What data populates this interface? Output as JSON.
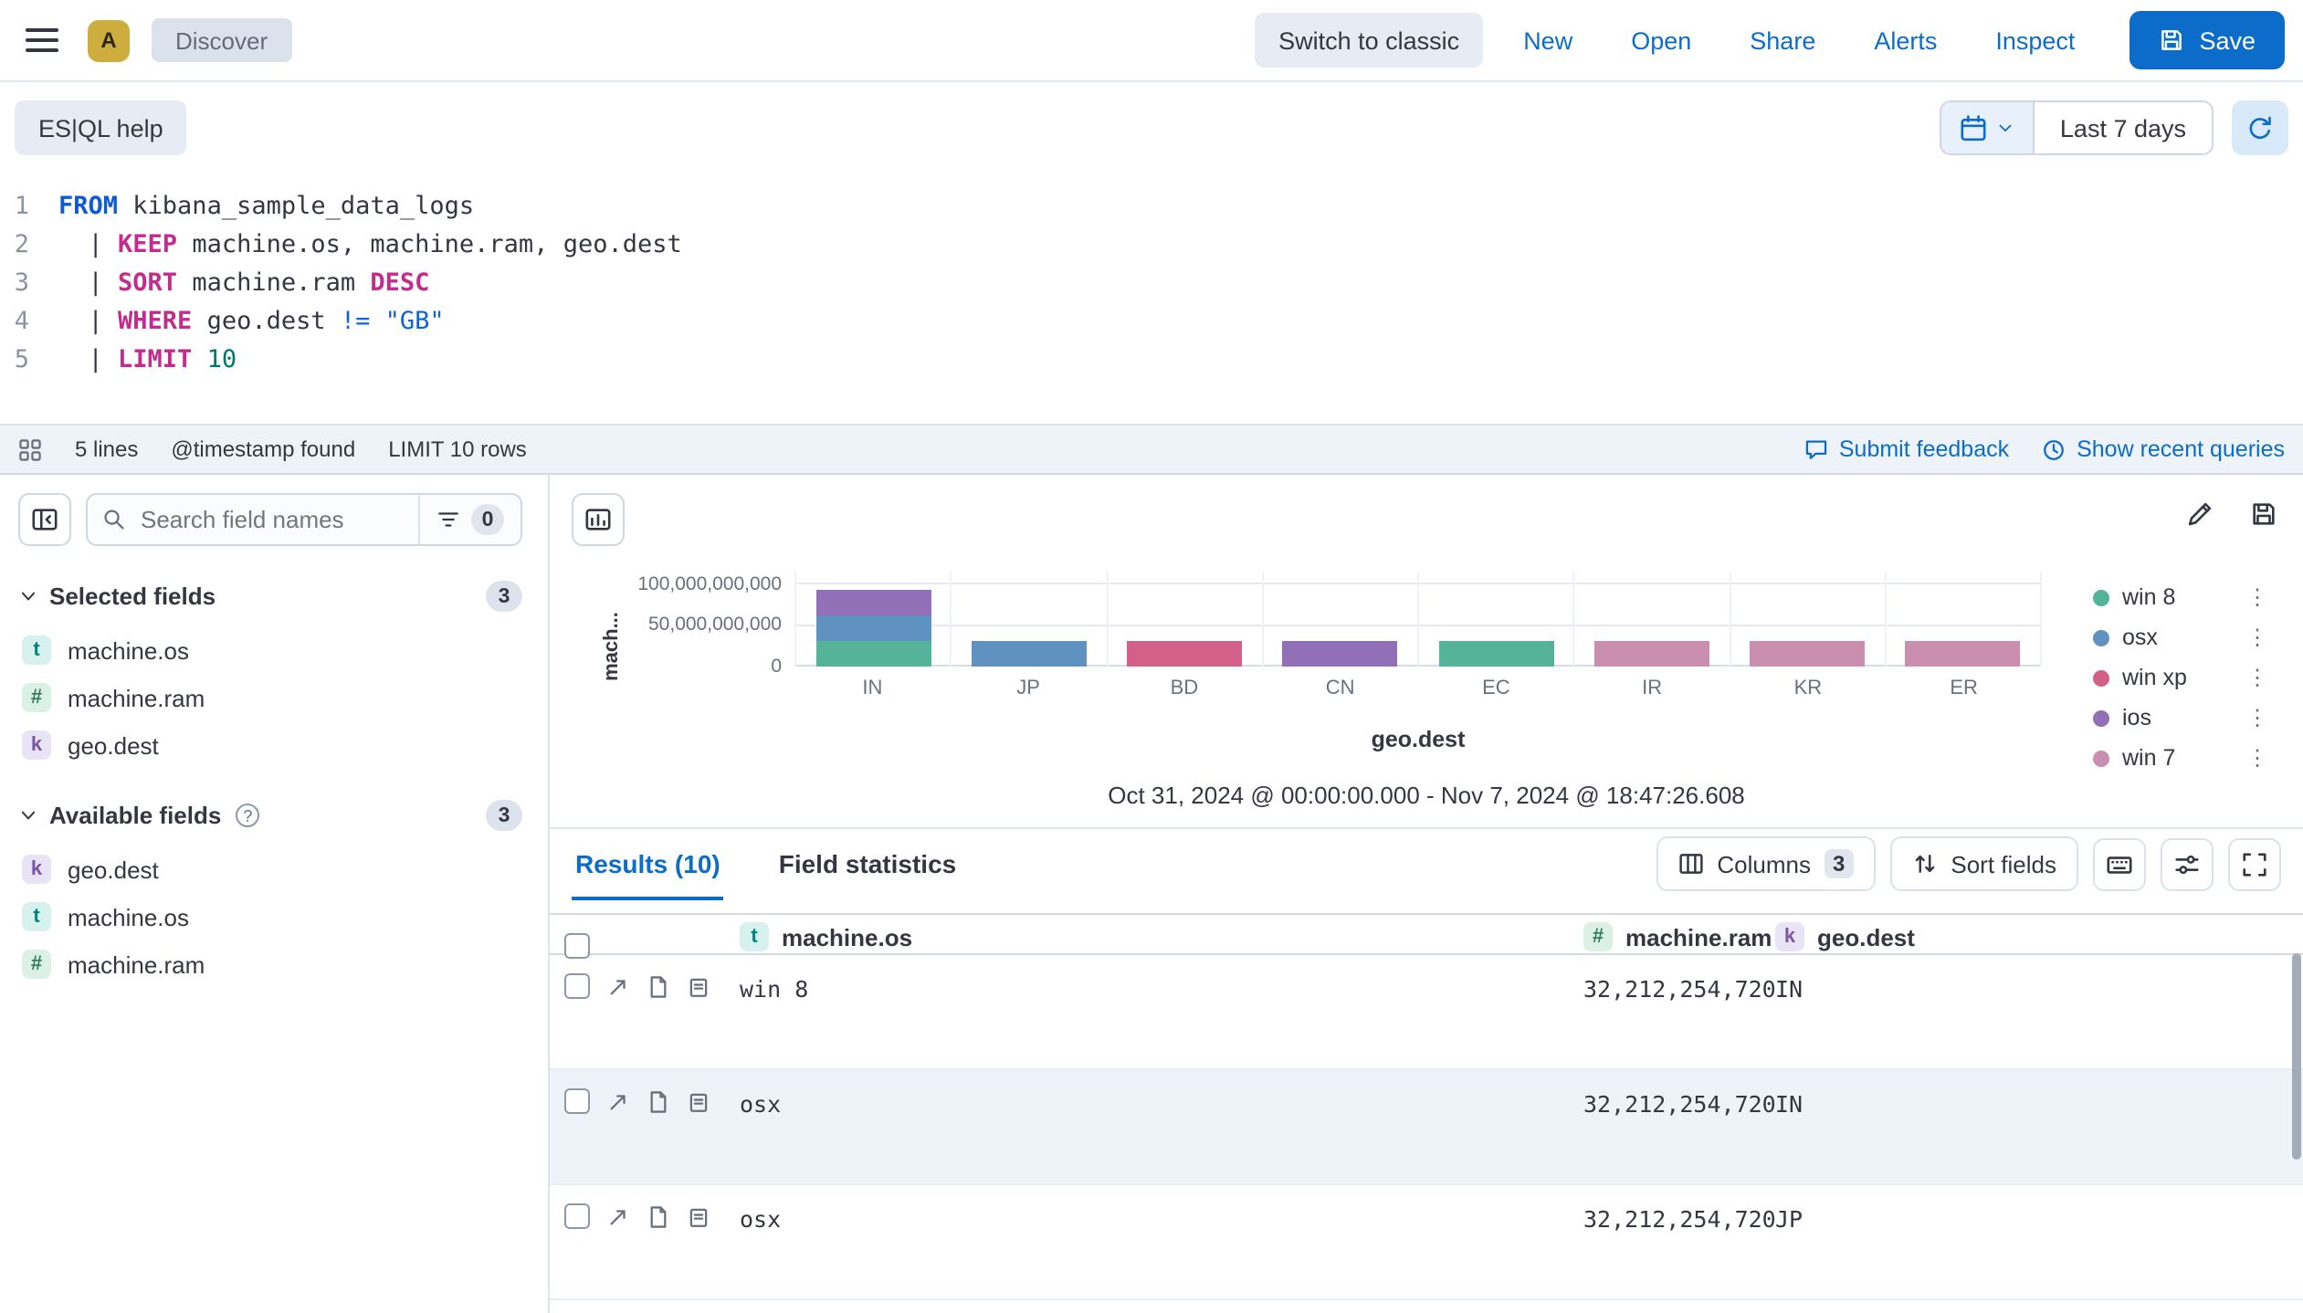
{
  "colors": {
    "accent": "#0b6cc9",
    "save_button": "#0b6cc9",
    "keyword_magenta": "#c22b8f",
    "keyword_blue": "#0f5ad6",
    "number_teal": "#00756b",
    "shaded_row": "#eef3fa"
  },
  "icons": {
    "vertical_dots": "⋮",
    "question": "?"
  },
  "topbar": {
    "avatar_label": "A",
    "breadcrumb": "Discover",
    "switch_classic_label": "Switch to classic",
    "nav_links": [
      "New",
      "Open",
      "Share",
      "Alerts",
      "Inspect"
    ],
    "save_label": "Save"
  },
  "querybar": {
    "help_label": "ES|QL help",
    "time_range_label": "Last 7 days"
  },
  "editor": {
    "lines": [
      {
        "num": "1",
        "pre": "",
        "kw": "FROM",
        "rest": " kibana_sample_data_logs"
      },
      {
        "num": "2",
        "pre": "  | ",
        "kw": "KEEP",
        "rest": " machine.os, machine.ram, geo.dest"
      },
      {
        "num": "3",
        "pre": "  | ",
        "kw": "SORT",
        "mid": " machine.ram ",
        "kw2": "DESC"
      },
      {
        "num": "4",
        "pre": "  | ",
        "kw": "WHERE",
        "mid": " geo.dest ",
        "op": "!=",
        "str": " \"GB\""
      },
      {
        "num": "5",
        "pre": "  | ",
        "kw": "LIMIT",
        "numlit": " 10"
      }
    ],
    "footer": {
      "lines_count": "5 lines",
      "timestamp_note": "@timestamp found",
      "limit_note": "LIMIT 10 rows",
      "feedback_label": "Submit feedback",
      "recent_queries_label": "Show recent queries"
    }
  },
  "sidebar": {
    "search_placeholder": "Search field names",
    "filter_count": "0",
    "selected_section": {
      "title": "Selected fields",
      "count": "3",
      "fields": [
        {
          "type": "t",
          "name": "machine.os"
        },
        {
          "type": "#",
          "name": "machine.ram"
        },
        {
          "type": "k",
          "name": "geo.dest"
        }
      ]
    },
    "available_section": {
      "title": "Available fields",
      "count": "3",
      "fields": [
        {
          "type": "k",
          "name": "geo.dest"
        },
        {
          "type": "t",
          "name": "machine.os"
        },
        {
          "type": "#",
          "name": "machine.ram"
        }
      ]
    }
  },
  "chart_data": {
    "type": "bar",
    "stacked": true,
    "categories": [
      "IN",
      "JP",
      "BD",
      "CN",
      "EC",
      "IR",
      "KR",
      "ER"
    ],
    "series": [
      {
        "name": "win 8",
        "color": "#54B399",
        "values": [
          32212254720,
          0,
          0,
          0,
          32212254720,
          0,
          0,
          0
        ]
      },
      {
        "name": "osx",
        "color": "#6092C0",
        "values": [
          32212254720,
          32212254720,
          0,
          0,
          0,
          0,
          0,
          0
        ]
      },
      {
        "name": "win xp",
        "color": "#D36086",
        "values": [
          0,
          0,
          32212254720,
          0,
          0,
          0,
          0,
          0
        ]
      },
      {
        "name": "ios",
        "color": "#9170B8",
        "values": [
          32212254720,
          0,
          0,
          32212254720,
          0,
          0,
          0,
          0
        ]
      },
      {
        "name": "win 7",
        "color": "#CA8EAE",
        "values": [
          0,
          0,
          0,
          0,
          0,
          32212254720,
          32212254720,
          32212254720
        ]
      }
    ],
    "y_ticks": [
      "100,000,000,000",
      "50,000,000,000",
      "0"
    ],
    "ylim": [
      0,
      100000000000
    ],
    "xlabel": "geo.dest",
    "ylabel_display": "mach...",
    "legend_position": "right",
    "grid": true,
    "time_range_note": "Oct 31, 2024 @ 00:00:00.000 - Nov 7, 2024 @ 18:47:26.608"
  },
  "results": {
    "tab_results": "Results (10)",
    "tab_field_stats": "Field statistics",
    "columns_label": "Columns",
    "columns_count": "3",
    "sort_label": "Sort fields",
    "table": {
      "headers": [
        {
          "type": "t",
          "name": "machine.os"
        },
        {
          "type": "#",
          "name": "machine.ram"
        },
        {
          "type": "k",
          "name": "geo.dest"
        }
      ],
      "rows": [
        {
          "os": "win 8",
          "ram": "32,212,254,720",
          "dest": "IN"
        },
        {
          "os": "osx",
          "ram": "32,212,254,720",
          "dest": "IN"
        },
        {
          "os": "osx",
          "ram": "32,212,254,720",
          "dest": "JP"
        }
      ]
    }
  }
}
